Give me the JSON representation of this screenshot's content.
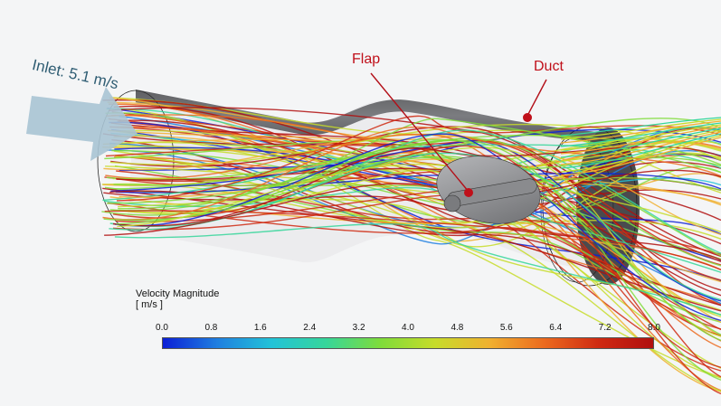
{
  "inlet_label": "Inlet: 5.1 m/s",
  "callouts": {
    "flap": "Flap",
    "duct": "Duct"
  },
  "legend": {
    "title_line1": "Velocity Magnitude",
    "title_line2": "[ m/s ]",
    "ticks": [
      "0.0",
      "0.8",
      "1.6",
      "2.4",
      "3.2",
      "4.0",
      "4.8",
      "5.6",
      "6.4",
      "7.2",
      "8.0"
    ],
    "range": [
      0.0,
      8.0
    ],
    "colormap": [
      "#0b1fd6",
      "#1f7fe0",
      "#22c3d8",
      "#36d69a",
      "#7fdc3a",
      "#c7dc2a",
      "#f0b030",
      "#ec6a1e",
      "#cf2a12",
      "#b00e0e"
    ]
  },
  "colors": {
    "callout": "#c0101a",
    "inlet_arrow": "#a9c4d4",
    "inlet_text": "#2f5d73",
    "geometry": "#6e6f72"
  }
}
